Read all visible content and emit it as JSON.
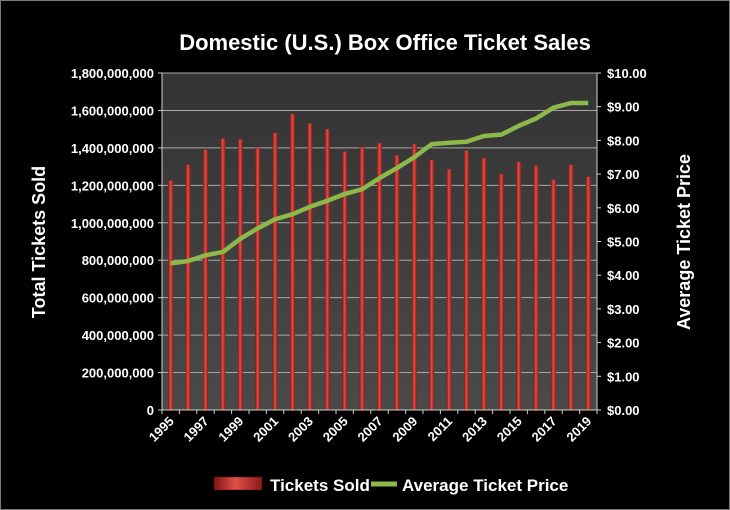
{
  "chart_data": {
    "type": "bar",
    "title": "Domestic (U.S.) Box Office Ticket Sales",
    "ylabel": "Total Tickets Sold",
    "y2label": "Average Ticket Price",
    "ylim": [
      0,
      1800000000
    ],
    "y2lim": [
      0,
      10
    ],
    "yticks": [
      "0",
      "200,000,000",
      "400,000,000",
      "600,000,000",
      "800,000,000",
      "1,000,000,000",
      "1,200,000,000",
      "1,400,000,000",
      "1,600,000,000",
      "1,800,000,000"
    ],
    "y2ticks": [
      "$0.00",
      "$1.00",
      "$2.00",
      "$3.00",
      "$4.00",
      "$5.00",
      "$6.00",
      "$7.00",
      "$8.00",
      "$9.00",
      "$10.00"
    ],
    "xticklabels": [
      "1995",
      "1997",
      "1999",
      "2001",
      "2003",
      "2005",
      "2007",
      "2009",
      "2011",
      "2013",
      "2015",
      "2017",
      "2019"
    ],
    "x": [
      "1995",
      "1996",
      "1997",
      "1998",
      "1999",
      "2000",
      "2001",
      "2002",
      "2003",
      "2004",
      "2005",
      "2006",
      "2007",
      "2008",
      "2009",
      "2010",
      "2011",
      "2012",
      "2013",
      "2014",
      "2015",
      "2016",
      "2017",
      "2018",
      "2019"
    ],
    "series": [
      {
        "name": "Tickets Sold",
        "type": "bar",
        "axis": "left",
        "color": "#c0302b",
        "values": [
          1225000000,
          1310000000,
          1390000000,
          1450000000,
          1445000000,
          1400000000,
          1480000000,
          1580000000,
          1530000000,
          1500000000,
          1380000000,
          1405000000,
          1425000000,
          1360000000,
          1420000000,
          1335000000,
          1285000000,
          1385000000,
          1345000000,
          1260000000,
          1325000000,
          1305000000,
          1230000000,
          1310000000,
          1245000000
        ]
      },
      {
        "name": "Average Ticket Price",
        "type": "line",
        "axis": "right",
        "color": "#8db84a",
        "values": [
          4.35,
          4.42,
          4.59,
          4.69,
          5.08,
          5.39,
          5.66,
          5.81,
          6.03,
          6.21,
          6.41,
          6.55,
          6.88,
          7.18,
          7.5,
          7.89,
          7.93,
          7.96,
          8.13,
          8.17,
          8.43,
          8.65,
          8.97,
          9.11,
          9.11
        ]
      }
    ],
    "grid": true,
    "legend": "bottom"
  },
  "colors": {
    "background": "#000000",
    "plot_area": "#3d3d3d",
    "gridline": "#a8a8a8",
    "text": "#ffffff"
  }
}
